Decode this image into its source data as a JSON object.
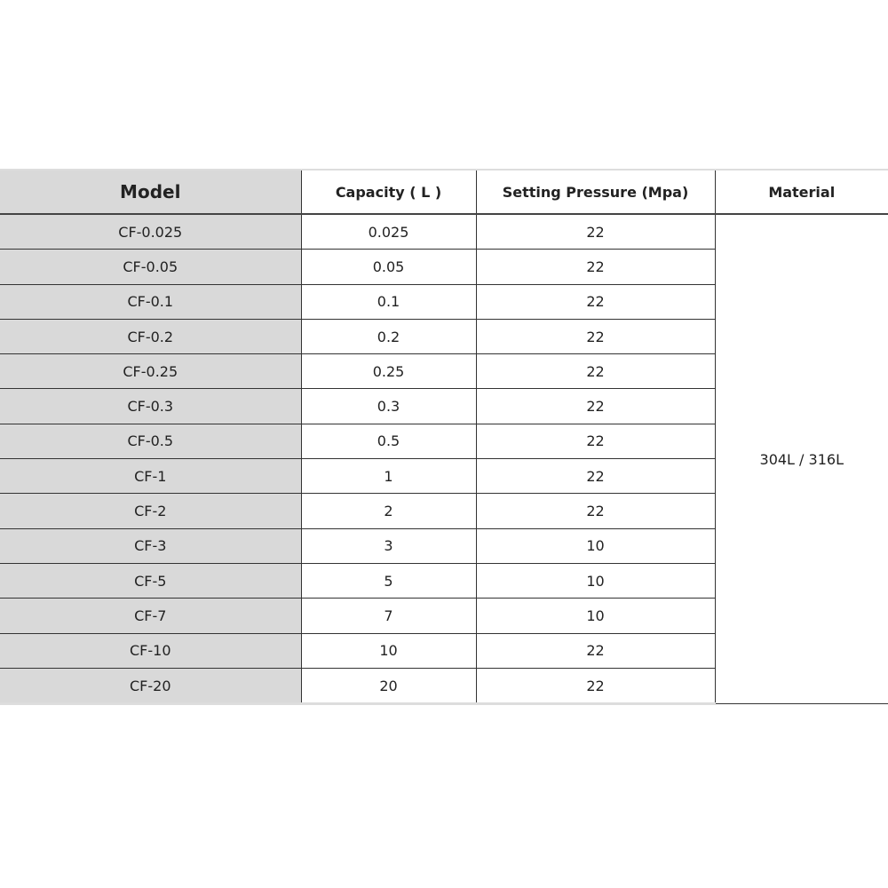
{
  "table": {
    "headers": [
      "Model",
      "Capacity ( L )",
      "Setting Pressure (Mpa)",
      "Material"
    ],
    "rows": [
      [
        "CF-0.025",
        "0.025",
        "22"
      ],
      [
        "CF-0.05",
        "0.05",
        "22"
      ],
      [
        "CF-0.1",
        "0.1",
        "22"
      ],
      [
        "CF-0.2",
        "0.2",
        "22"
      ],
      [
        "CF-0.25",
        "0.25",
        "22"
      ],
      [
        "CF-0.3",
        "0.3",
        "22"
      ],
      [
        "CF-0.5",
        "0.5",
        "22"
      ],
      [
        "CF-1",
        "1",
        "22"
      ],
      [
        "CF-2",
        "2",
        "22"
      ],
      [
        "CF-3",
        "3",
        "10"
      ],
      [
        "CF-5",
        "5",
        "10"
      ],
      [
        "CF-7",
        "7",
        "10"
      ],
      [
        "CF-10",
        "10",
        "22"
      ],
      [
        "CF-20",
        "20",
        "22"
      ]
    ],
    "material": "304L / 316L"
  },
  "colors": {
    "model_column_bg": "#d9d9d9"
  }
}
